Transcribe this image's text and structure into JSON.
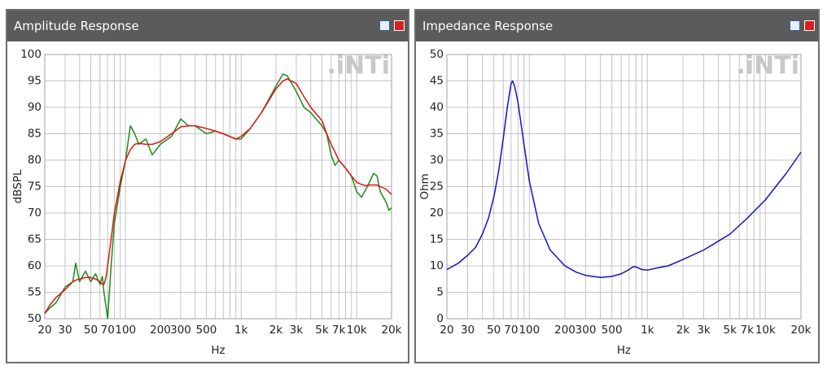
{
  "chart_data": [
    {
      "type": "line",
      "title": "Amplitude Response",
      "watermark": ".iNTi",
      "xlabel": "Hz",
      "ylabel": "dBSPL",
      "log_x": true,
      "grid": true,
      "xlim": [
        20,
        20000
      ],
      "ylim": [
        50,
        100
      ],
      "xticks": [
        20,
        30,
        50,
        70,
        100,
        200,
        300,
        500,
        {
          "value": 1000,
          "label": "1k"
        },
        {
          "value": 2000,
          "label": "2k"
        },
        {
          "value": 3000,
          "label": "3k"
        },
        {
          "value": 5000,
          "label": "5k"
        },
        {
          "value": 7000,
          "label": "7k"
        },
        {
          "value": 10000,
          "label": "10k"
        },
        {
          "value": 20000,
          "label": "20k"
        }
      ],
      "xgrid": [
        20,
        30,
        40,
        50,
        60,
        70,
        80,
        90,
        100,
        200,
        300,
        400,
        500,
        600,
        700,
        800,
        900,
        1000,
        2000,
        3000,
        4000,
        5000,
        6000,
        7000,
        8000,
        9000,
        10000,
        20000
      ],
      "yticks": [
        50,
        55,
        60,
        65,
        70,
        75,
        80,
        85,
        90,
        95,
        100
      ],
      "x": [
        20,
        22,
        25,
        30,
        35,
        37,
        40,
        45,
        50,
        55,
        60,
        63,
        65,
        68,
        70,
        75,
        80,
        90,
        100,
        110,
        120,
        130,
        150,
        170,
        200,
        250,
        300,
        350,
        400,
        500,
        600,
        700,
        900,
        1000,
        1200,
        1500,
        2000,
        2300,
        2500,
        3000,
        3500,
        4000,
        5000,
        5500,
        6000,
        6500,
        7000,
        8000,
        9000,
        10000,
        11000,
        12000,
        13000,
        14000,
        15000,
        16000,
        18000,
        19000,
        20000
      ],
      "series": [
        {
          "color": "#1a8c1a",
          "values": [
            51,
            52,
            53,
            56,
            57,
            60.5,
            57,
            59,
            57,
            58.5,
            56.5,
            58,
            55,
            52,
            50,
            60,
            68,
            75,
            80,
            86.5,
            85,
            83,
            84,
            81,
            83,
            84.5,
            87.8,
            86.5,
            86.5,
            85,
            85.5,
            85,
            84,
            84,
            86,
            89,
            94,
            96.3,
            96,
            93,
            90,
            89,
            86.5,
            85,
            81,
            79,
            80,
            78.5,
            77,
            74,
            73,
            74.5,
            76,
            77.5,
            77,
            74,
            72,
            70.5,
            71
          ]
        },
        {
          "color": "#e01414",
          "values": [
            51,
            52.5,
            54,
            55.5,
            57,
            57.3,
            57.5,
            57.8,
            57.8,
            57.5,
            57,
            56.5,
            56.5,
            58,
            60,
            65,
            70,
            76,
            80,
            82,
            83,
            83.2,
            83,
            83,
            83.5,
            85,
            86.3,
            86.5,
            86.5,
            86,
            85.5,
            85,
            84,
            84.5,
            86,
            89,
            93.5,
            95,
            95.4,
            94.5,
            92,
            90,
            87.5,
            85,
            83,
            81.5,
            80,
            78.5,
            77,
            75.8,
            75.4,
            75.2,
            75.3,
            75.3,
            75.3,
            75,
            74.5,
            74,
            73.5
          ]
        }
      ]
    },
    {
      "type": "line",
      "title": "Impedance Response",
      "watermark": ".iNTi",
      "xlabel": "Hz",
      "ylabel": "Ohm",
      "log_x": true,
      "grid": true,
      "xlim": [
        20,
        20000
      ],
      "ylim": [
        0,
        50
      ],
      "xticks": [
        20,
        30,
        50,
        70,
        100,
        200,
        300,
        500,
        {
          "value": 1000,
          "label": "1k"
        },
        {
          "value": 2000,
          "label": "2k"
        },
        {
          "value": 3000,
          "label": "3k"
        },
        {
          "value": 5000,
          "label": "5k"
        },
        {
          "value": 7000,
          "label": "7k"
        },
        {
          "value": 10000,
          "label": "10k"
        },
        {
          "value": 20000,
          "label": "20k"
        }
      ],
      "xgrid": [
        20,
        30,
        40,
        50,
        60,
        70,
        80,
        90,
        100,
        200,
        300,
        400,
        500,
        600,
        700,
        800,
        900,
        1000,
        2000,
        3000,
        4000,
        5000,
        6000,
        7000,
        8000,
        9000,
        10000,
        20000
      ],
      "yticks": [
        0,
        5,
        10,
        15,
        20,
        25,
        30,
        35,
        40,
        45,
        50
      ],
      "x": [
        20,
        25,
        30,
        35,
        40,
        45,
        50,
        55,
        60,
        65,
        70,
        72,
        75,
        80,
        90,
        100,
        120,
        150,
        200,
        250,
        300,
        400,
        500,
        600,
        700,
        750,
        800,
        900,
        1000,
        1200,
        1500,
        2000,
        3000,
        5000,
        7000,
        10000,
        15000,
        20000
      ],
      "series": [
        {
          "color": "#1212c8",
          "values": [
            9.3,
            10.5,
            12,
            13.5,
            16,
            19,
            23,
            28,
            34,
            40,
            44.5,
            45,
            44,
            41,
            33,
            26,
            18,
            13,
            10,
            8.8,
            8.2,
            7.8,
            8,
            8.5,
            9.3,
            9.8,
            9.8,
            9.3,
            9.2,
            9.6,
            10,
            11.2,
            13,
            16,
            19,
            22.5,
            27.5,
            31.5
          ]
        }
      ]
    }
  ]
}
